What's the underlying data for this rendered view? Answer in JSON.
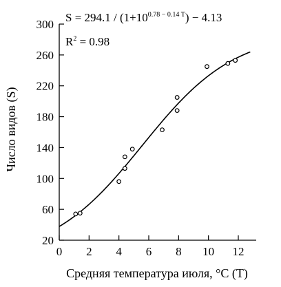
{
  "chart_data": {
    "type": "scatter",
    "xlabel": "Средняя температура июля, °C (T)",
    "ylabel": "Число видов (S)",
    "xlim": [
      0,
      13.2
    ],
    "ylim": [
      20,
      300
    ],
    "xticks": [
      0,
      2,
      4,
      6,
      8,
      10,
      12
    ],
    "yticks": [
      20,
      60,
      100,
      140,
      180,
      220,
      260,
      300
    ],
    "grid": false,
    "points": [
      {
        "x": 1.1,
        "y": 54
      },
      {
        "x": 1.4,
        "y": 55
      },
      {
        "x": 4.0,
        "y": 96
      },
      {
        "x": 4.4,
        "y": 113
      },
      {
        "x": 4.4,
        "y": 128
      },
      {
        "x": 4.9,
        "y": 138
      },
      {
        "x": 6.9,
        "y": 163
      },
      {
        "x": 7.9,
        "y": 188
      },
      {
        "x": 7.9,
        "y": 205
      },
      {
        "x": 9.9,
        "y": 245
      },
      {
        "x": 11.3,
        "y": 249
      },
      {
        "x": 11.8,
        "y": 253
      }
    ],
    "fit": {
      "formula_prefix": "S = 294.1 / (1+10",
      "formula_exponent": "0.78 − 0.14 T",
      "formula_suffix": ") − 4.13",
      "r2_label": "R",
      "r2_exp": "2",
      "r2_value": "= 0.98",
      "a": 294.1,
      "b": 0.78,
      "c": 0.14,
      "d": 4.13,
      "x_range": [
        0,
        12.8
      ]
    }
  }
}
